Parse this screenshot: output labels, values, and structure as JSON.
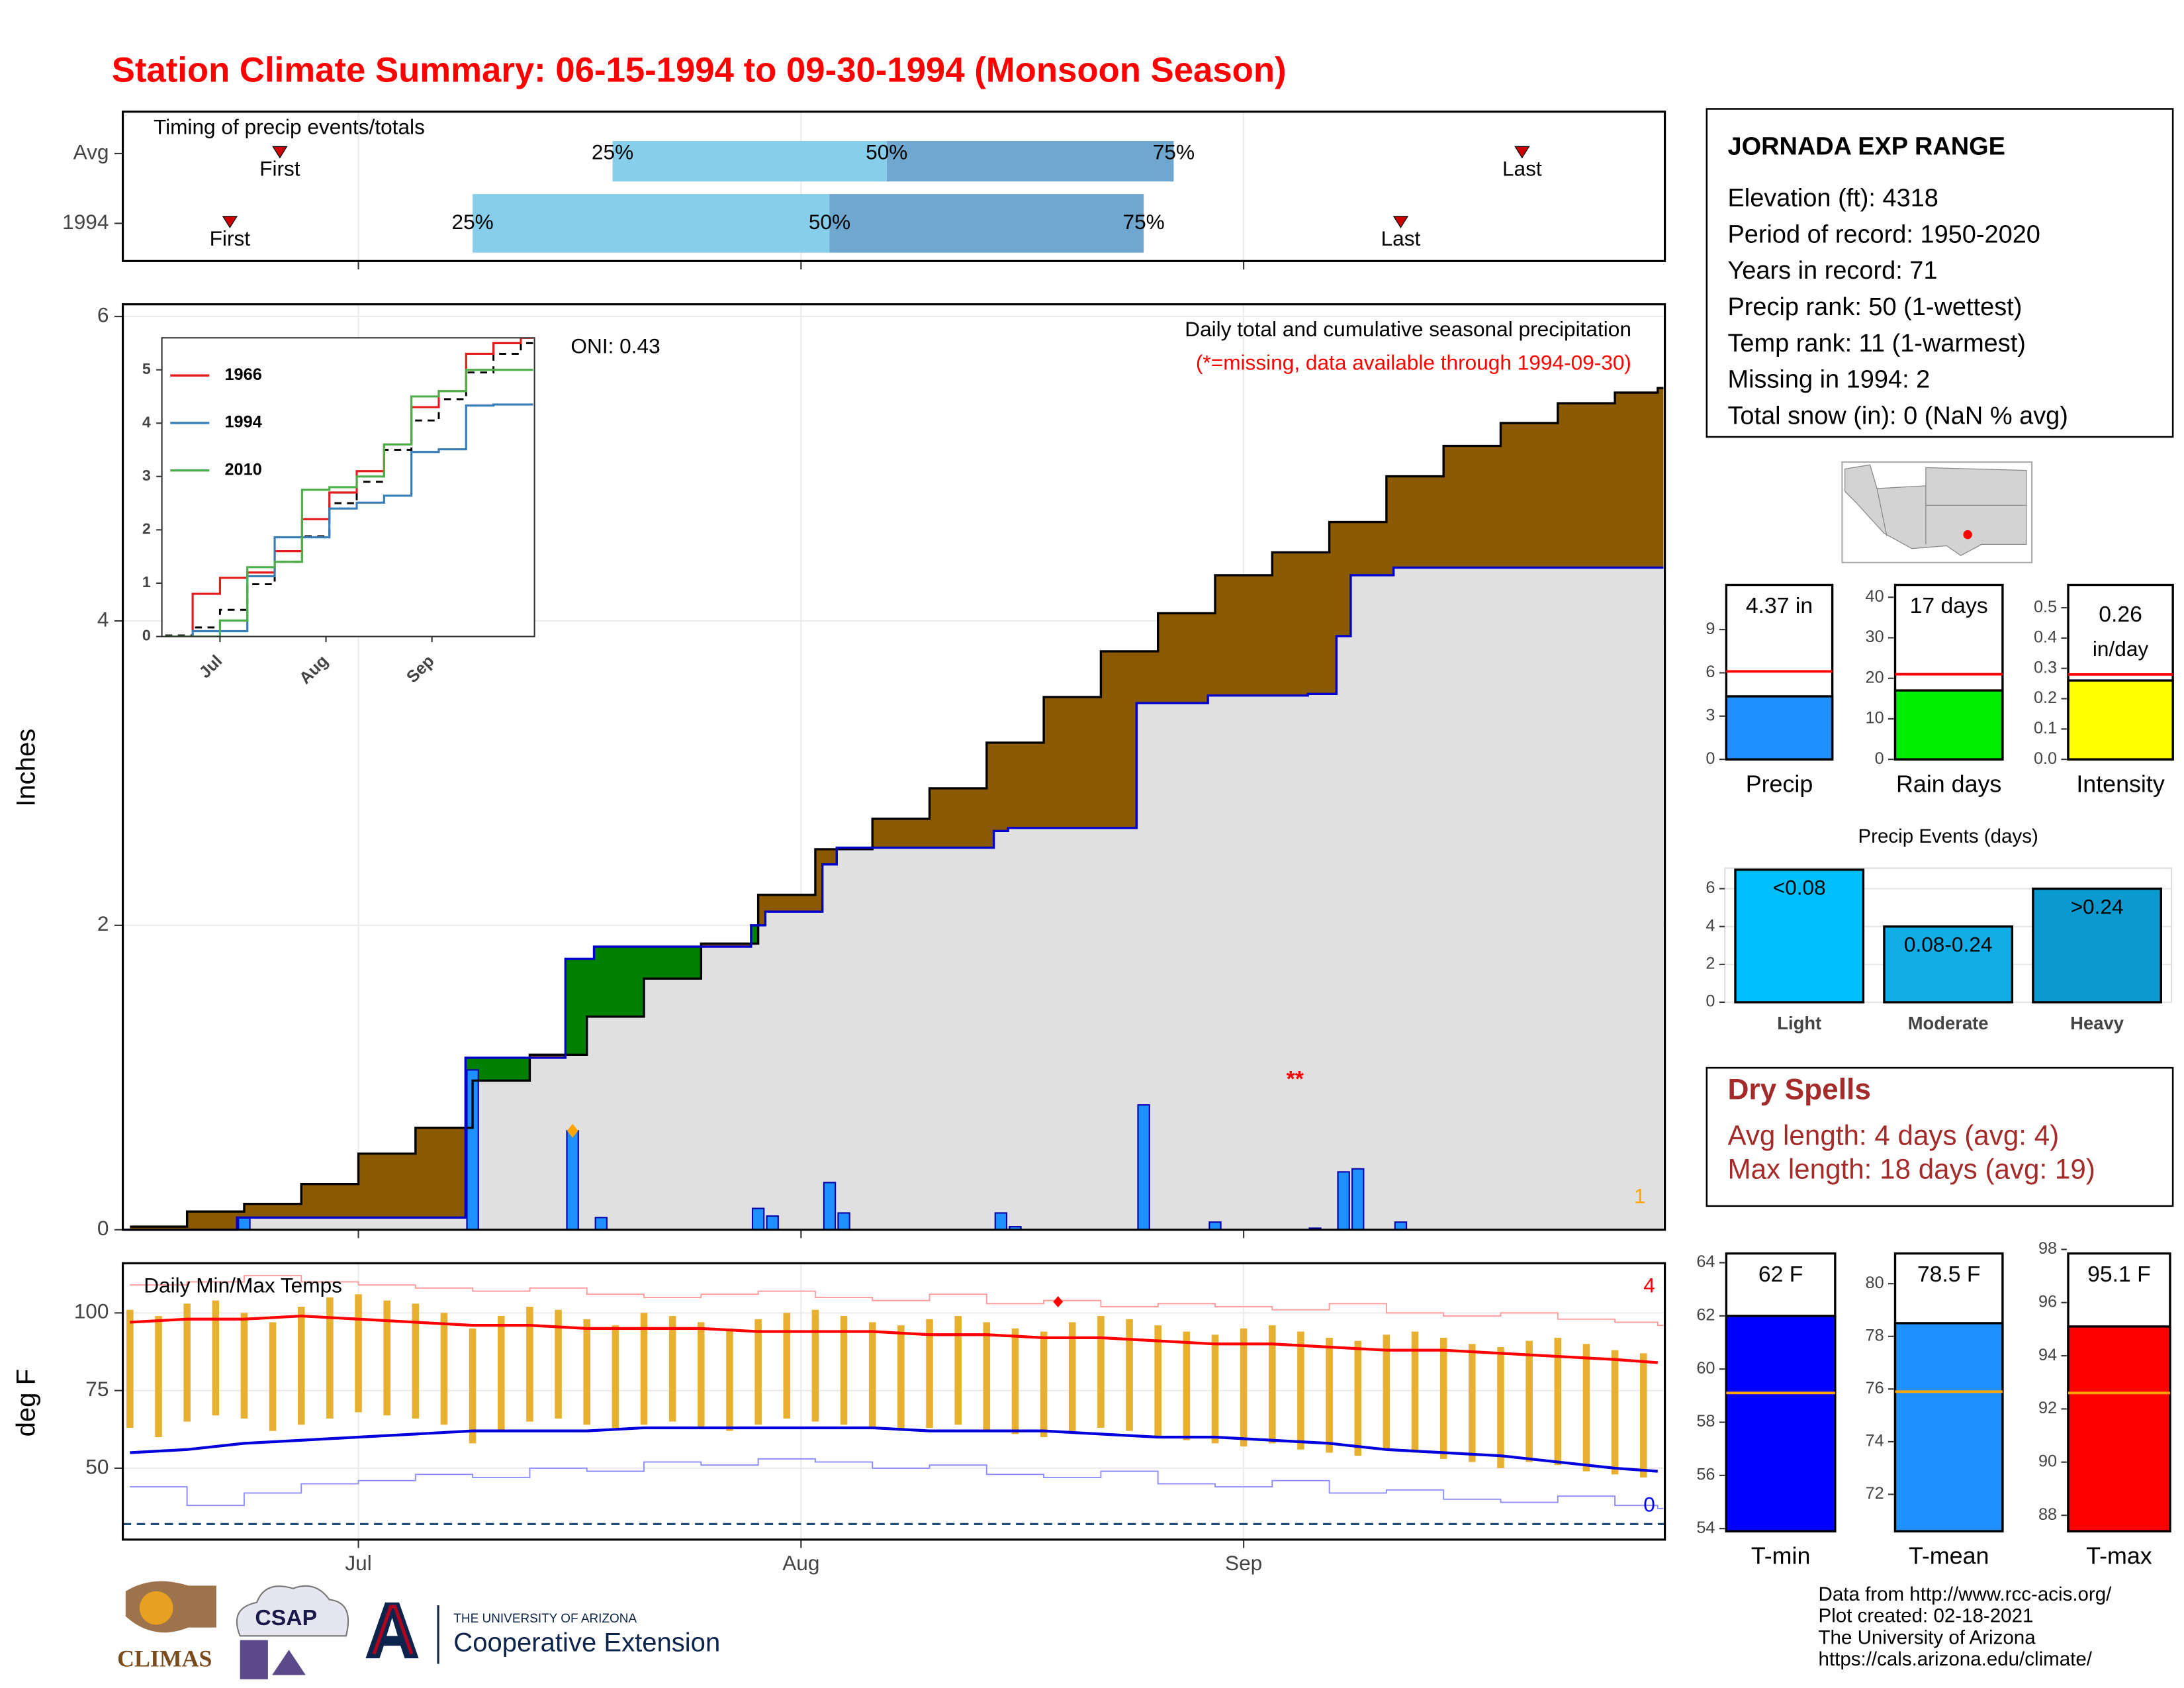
{
  "title": "Station Climate Summary: 06-15-1994 to 09-30-1994 (Monsoon Season)",
  "station": {
    "name": "JORNADA EXP RANGE",
    "lines": [
      "Elevation (ft): 4318",
      "Period of record: 1950-2020",
      "Years in record: 71",
      "Precip rank: 50 (1-wettest)",
      "Temp rank: 11 (1-warmest)",
      "Missing in 1994: 2",
      "Total snow (in): 0 (NaN % avg)"
    ]
  },
  "dry_spells": {
    "title": "Dry Spells",
    "lines": [
      "Avg length: 4 days (avg: 4)",
      "Max length: 18 days (avg: 19)"
    ]
  },
  "footer": {
    "logos": [
      "CLIMAS",
      "CSAP",
      "THE UNIVERSITY OF ARIZONA",
      "Cooperative Extension"
    ],
    "credits": [
      "Data from http://www.rcc-acis.org/",
      "Plot created: 02-18-2021",
      "The University of Arizona",
      "https://cals.arizona.edu/climate/"
    ]
  },
  "chart_data": [
    {
      "type": "timing",
      "title": "Timing of precip events/totals",
      "markers": [
        "First",
        "25%",
        "50%",
        "75%",
        "Last"
      ],
      "series": [
        {
          "name": "Avg",
          "values": [
            10.5,
            33.8,
            53.0,
            73.1,
            97.5
          ]
        },
        {
          "name": "1994",
          "values": [
            7,
            24,
            49,
            71,
            89
          ]
        }
      ],
      "colors": [
        "#87ceeb",
        "#6fa7cf"
      ],
      "marker_color": "#cc0000",
      "xlim": [
        -0.5,
        107.5
      ],
      "xticks": [
        16,
        47,
        78
      ]
    },
    {
      "type": "precip",
      "title": "Daily total and cumulative seasonal precipitation",
      "subtitle": "(*=missing, data available through 1994-09-30)",
      "annotation": "ONI: 0.43",
      "ylabel": "Inches",
      "xlim": [
        -0.5,
        107.5
      ],
      "ylim": [
        0,
        6.08
      ],
      "yticks": [
        0,
        2,
        4,
        6
      ],
      "xticks": [
        16,
        47,
        78
      ],
      "average": {
        "x": [
          0,
          4,
          8,
          12,
          16,
          20,
          24,
          28,
          32,
          36,
          40,
          44,
          48,
          52,
          56,
          60,
          64,
          68,
          72,
          76,
          80,
          84,
          88,
          92,
          96,
          100,
          104,
          107
        ],
        "values": [
          0.02,
          0.12,
          0.17,
          0.3,
          0.5,
          0.67,
          0.98,
          1.15,
          1.4,
          1.65,
          1.88,
          2.2,
          2.5,
          2.7,
          2.9,
          3.2,
          3.5,
          3.8,
          4.05,
          4.3,
          4.45,
          4.65,
          4.95,
          5.15,
          5.3,
          5.43,
          5.5,
          5.53
        ],
        "color": "#000000"
      },
      "daily": {
        "x": [
          8,
          24,
          31,
          33,
          44,
          45,
          49,
          50,
          61,
          62,
          71,
          76,
          83,
          85,
          86,
          89
        ],
        "values": [
          0.08,
          1.05,
          0.65,
          0.08,
          0.14,
          0.09,
          0.31,
          0.11,
          0.11,
          0.02,
          0.82,
          0.05,
          0.01,
          0.38,
          0.4,
          0.05
        ],
        "color": "#1e90ff"
      },
      "cumulative_color": "#0000cc",
      "deficit_color": "#8b5a00",
      "surplus_color": "#008000",
      "base_color": "#e0e0e0",
      "highlight": {
        "x": 31,
        "y": 0.65,
        "color": "#ffa500"
      },
      "marks": [
        {
          "text": "**",
          "color": "#ff0000"
        },
        {
          "text": "1",
          "color": "#ffa500"
        }
      ]
    },
    {
      "type": "line",
      "xlim": [
        -1,
        108
      ],
      "ylim": [
        0,
        5.6
      ],
      "yticks": [
        0,
        1,
        2,
        3,
        4,
        5
      ],
      "xticks": [
        {
          "value": 16,
          "label": "Jul"
        },
        {
          "value": 47,
          "label": "Aug"
        },
        {
          "value": 78,
          "label": "Sep"
        }
      ],
      "x": [
        0,
        8,
        16,
        24,
        32,
        40,
        48,
        56,
        64,
        72,
        80,
        88,
        96,
        104
      ],
      "average": {
        "values": [
          0.02,
          0.17,
          0.5,
          0.98,
          1.4,
          1.88,
          2.5,
          2.9,
          3.5,
          4.05,
          4.45,
          4.95,
          5.3,
          5.5
        ],
        "color": "#000000"
      },
      "series": [
        {
          "name": "1966",
          "color": "#e41a1c",
          "values": [
            0,
            0.8,
            1.1,
            1.2,
            1.6,
            2.2,
            2.7,
            3.1,
            3.6,
            4.3,
            4.6,
            5.3,
            5.5,
            5.6
          ]
        },
        {
          "name": "1994",
          "color": "#377eb8",
          "values": [
            0,
            0.1,
            0.1,
            1.13,
            1.86,
            1.86,
            2.4,
            2.51,
            2.64,
            3.46,
            3.51,
            4.33,
            4.35,
            4.35
          ]
        },
        {
          "name": "2010",
          "color": "#4daf4a",
          "values": [
            0,
            0,
            0.3,
            1.3,
            1.4,
            2.75,
            2.8,
            3.0,
            3.6,
            4.5,
            4.6,
            5.0,
            5.0,
            5.0
          ]
        }
      ]
    },
    {
      "type": "bar",
      "categories": [
        "Precip"
      ],
      "values": [
        4.37
      ],
      "value_labels": [
        "4.37 in"
      ],
      "average": 6.1,
      "color": "#1e90ff",
      "average_color": "#ff0000",
      "ylim": [
        0,
        12.2
      ],
      "yticks": [
        0,
        3,
        6,
        9
      ]
    },
    {
      "type": "bar",
      "categories": [
        "Rain days"
      ],
      "values": [
        17
      ],
      "value_labels": [
        "17 days"
      ],
      "average": 21,
      "color": "#00ee00",
      "average_color": "#ff0000",
      "ylim": [
        0,
        43.4
      ],
      "yticks": [
        0,
        10,
        20,
        30,
        40
      ]
    },
    {
      "type": "bar",
      "categories": [
        "Intensity"
      ],
      "values": [
        0.26
      ],
      "unit": "in/day",
      "average": 0.28,
      "color": "#ffff00",
      "average_color": "#ff0000",
      "ylim": [
        0,
        0.58
      ],
      "yticks": [
        {
          "value": 0,
          "label": "0.0"
        },
        {
          "value": 0.1,
          "label": "0.1"
        },
        {
          "value": 0.2,
          "label": "0.2"
        },
        {
          "value": 0.3,
          "label": "0.3"
        },
        {
          "value": 0.4,
          "label": "0.4"
        },
        {
          "value": 0.5,
          "label": "0.5"
        }
      ]
    },
    {
      "type": "bar",
      "title": "Precip Events (days)",
      "categories": [
        "Light",
        "Moderate",
        "Heavy"
      ],
      "values": [
        7,
        4,
        6
      ],
      "ranges": [
        "<0.08",
        "0.08-0.24",
        ">0.24"
      ],
      "colors": [
        "#00bfff",
        "#10ade6",
        "#0a9ad0"
      ],
      "ylim": [
        0,
        7.08
      ],
      "yticks": [
        0,
        2,
        4,
        6
      ],
      "grid": true
    },
    {
      "type": "temps",
      "title": "Daily Min/Max Temps",
      "ylabel": "deg F",
      "xlim": [
        -0.5,
        107.5
      ],
      "ylim": [
        27,
        116
      ],
      "yticks": [
        50,
        75,
        100
      ],
      "xticks": [
        {
          "value": 16,
          "label": "Jul"
        },
        {
          "value": 47,
          "label": "Aug"
        },
        {
          "value": 78,
          "label": "Sep"
        }
      ],
      "x": [
        0,
        2,
        4,
        6,
        8,
        10,
        12,
        14,
        16,
        18,
        20,
        22,
        24,
        26,
        28,
        30,
        32,
        34,
        36,
        38,
        40,
        42,
        44,
        46,
        48,
        50,
        52,
        54,
        56,
        58,
        60,
        62,
        64,
        66,
        68,
        70,
        72,
        74,
        76,
        78,
        80,
        82,
        84,
        86,
        88,
        90,
        92,
        94,
        96,
        98,
        100,
        102,
        104,
        106
      ],
      "max": [
        101,
        99,
        103,
        104,
        100,
        97,
        102,
        105,
        106,
        104,
        103,
        100,
        95,
        99,
        102,
        101,
        98,
        96,
        100,
        99,
        97,
        95,
        98,
        100,
        101,
        99,
        97,
        96,
        98,
        99,
        97,
        95,
        94,
        97,
        99,
        98,
        96,
        94,
        93,
        95,
        96,
        94,
        92,
        91,
        93,
        94,
        92,
        90,
        89,
        91,
        92,
        90,
        88,
        87
      ],
      "min": [
        63,
        60,
        65,
        67,
        66,
        62,
        64,
        66,
        68,
        67,
        66,
        64,
        58,
        62,
        65,
        66,
        64,
        63,
        64,
        65,
        63,
        62,
        64,
        66,
        65,
        64,
        63,
        62,
        63,
        64,
        62,
        61,
        60,
        62,
        63,
        62,
        60,
        59,
        58,
        57,
        58,
        56,
        55,
        54,
        56,
        55,
        53,
        52,
        50,
        52,
        51,
        49,
        48,
        47
      ],
      "bar_color": "#e8b030",
      "normals": {
        "x": [
          0,
          4,
          8,
          12,
          16,
          20,
          24,
          28,
          32,
          36,
          40,
          44,
          48,
          52,
          56,
          60,
          64,
          68,
          72,
          76,
          80,
          84,
          88,
          92,
          96,
          100,
          104,
          107
        ],
        "max": [
          97,
          98,
          98,
          99,
          98,
          97,
          96,
          96,
          95,
          95,
          95,
          94,
          94,
          94,
          93,
          93,
          92,
          92,
          91,
          90,
          90,
          89,
          88,
          88,
          87,
          86,
          85,
          84
        ],
        "min": [
          55,
          56,
          58,
          59,
          60,
          61,
          62,
          62,
          62,
          63,
          63,
          63,
          63,
          63,
          62,
          62,
          62,
          61,
          60,
          60,
          59,
          58,
          56,
          55,
          54,
          52,
          50,
          49
        ],
        "max_color": "#ff0000",
        "min_color": "#0000dd"
      },
      "records": {
        "max": [
          109,
          110,
          112,
          110,
          109,
          108,
          107,
          108,
          106,
          105,
          106,
          107,
          105,
          104,
          106,
          103,
          104,
          102,
          103,
          102,
          101,
          103,
          100,
          99,
          100,
          98,
          97,
          96
        ],
        "min": [
          44,
          38,
          42,
          45,
          46,
          48,
          47,
          50,
          49,
          52,
          51,
          53,
          52,
          50,
          51,
          48,
          47,
          49,
          45,
          44,
          46,
          42,
          43,
          40,
          39,
          41,
          38,
          37
        ],
        "max_color": "#ff9a9a",
        "min_color": "#8c8cff"
      },
      "freeze": 32,
      "freeze_color": "#1f4e79",
      "record_marker": {
        "x": 65,
        "y": 103.6,
        "color": "#ff0000"
      },
      "notes": [
        {
          "text": "4",
          "color": "#ff0000"
        },
        {
          "text": "0",
          "color": "#0000ff"
        }
      ]
    },
    {
      "type": "bar",
      "categories": [
        "T-min"
      ],
      "values": [
        62
      ],
      "value_labels": [
        "62 F"
      ],
      "average": 59.1,
      "color": "#0000ff",
      "average_color": "#ffa500",
      "ylim": [
        53.9,
        64.4
      ],
      "yticks": [
        54,
        56,
        58,
        60,
        62,
        64
      ]
    },
    {
      "type": "bar",
      "categories": [
        "T-mean"
      ],
      "values": [
        78.5
      ],
      "value_labels": [
        "78.5 F"
      ],
      "average": 75.9,
      "color": "#1e90ff",
      "average_color": "#ffa500",
      "ylim": [
        70.6,
        81.2
      ],
      "yticks": [
        72,
        74,
        76,
        78,
        80
      ]
    },
    {
      "type": "bar",
      "categories": [
        "T-max"
      ],
      "values": [
        95.1
      ],
      "value_labels": [
        "95.1 F"
      ],
      "average": 92.6,
      "color": "#ff0000",
      "average_color": "#ffa500",
      "ylim": [
        87.4,
        97.9
      ],
      "yticks": [
        88,
        90,
        92,
        94,
        96,
        98
      ]
    }
  ]
}
